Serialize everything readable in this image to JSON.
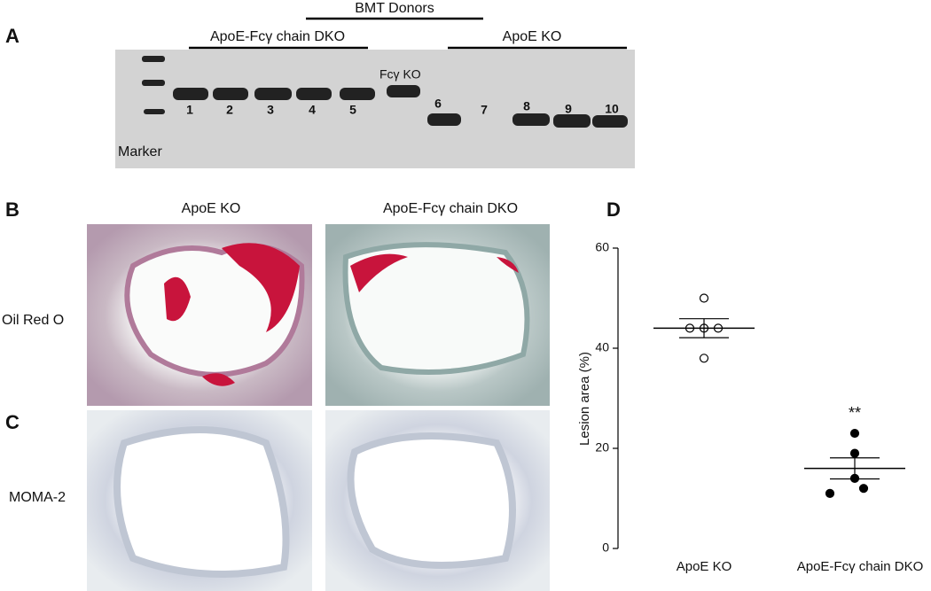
{
  "panel_a": {
    "label": "A",
    "group_title": "BMT Donors",
    "groups": [
      "ApoE-Fcγ chain DKO",
      "ApoE KO"
    ],
    "marker_label": "Marker",
    "control_label": "Fcγ KO",
    "lanes": [
      "1",
      "2",
      "3",
      "4",
      "5",
      "6",
      "7",
      "8",
      "9",
      "10"
    ]
  },
  "panel_b": {
    "label": "B",
    "columns": [
      "ApoE KO",
      "ApoE-Fcγ chain DKO"
    ],
    "row_label": "Oil Red O"
  },
  "panel_c": {
    "label": "C",
    "row_label": "MOMA-2"
  },
  "chart_data": {
    "type": "scatter",
    "panel_label": "D",
    "y_label": "Lesion area (%)",
    "categories": [
      "ApoE KO",
      "ApoE-Fcγ chain DKO"
    ],
    "series": [
      {
        "values": [
          50,
          44,
          44,
          44,
          38
        ],
        "mean": 44,
        "sem": 1.9,
        "marker": "open",
        "color": "#000000"
      },
      {
        "values": [
          23,
          19,
          14,
          12,
          11
        ],
        "mean": 16,
        "sem": 2.1,
        "marker": "filled",
        "color": "#000000",
        "annotation": "**"
      }
    ],
    "ylim": [
      0,
      60
    ],
    "yticks": [
      0,
      20,
      40,
      60
    ]
  }
}
